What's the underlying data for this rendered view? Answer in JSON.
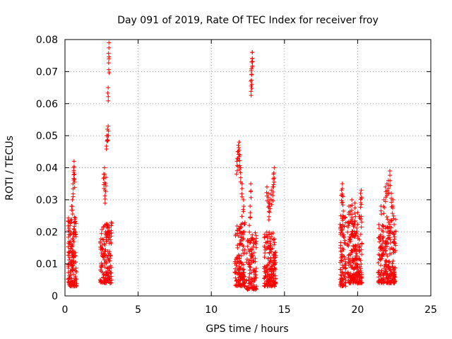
{
  "chart_data": {
    "type": "scatter",
    "title": "Day 091 of 2019, Rate Of TEC Index for receiver froy",
    "xlabel": "GPS time / hours",
    "ylabel": "ROTI / TECUs",
    "xlim": [
      0,
      25
    ],
    "ylim": [
      0,
      0.08
    ],
    "xticks": [
      "0",
      "5",
      "10",
      "15",
      "20",
      "25"
    ],
    "yticks": [
      "0",
      "0.01",
      "0.02",
      "0.03",
      "0.04",
      "0.05",
      "0.06",
      "0.07",
      "0.08"
    ],
    "grid": true,
    "marker": "+",
    "color": "#ff0000",
    "clusters": [
      {
        "x_range": [
          0.2,
          0.8
        ],
        "y_range": [
          0.003,
          0.025
        ],
        "count": 150,
        "peaks": [
          [
            0.35,
            0.022
          ],
          [
            0.5,
            0.03
          ],
          [
            0.55,
            0.035
          ],
          [
            0.6,
            0.04
          ],
          [
            0.62,
            0.042
          ],
          [
            0.65,
            0.038
          ],
          [
            0.45,
            0.028
          ]
        ]
      },
      {
        "x_range": [
          2.4,
          3.2
        ],
        "y_range": [
          0.004,
          0.023
        ],
        "count": 160,
        "peaks": [
          [
            2.7,
            0.04
          ],
          [
            2.75,
            0.033
          ],
          [
            2.8,
            0.037
          ],
          [
            2.85,
            0.05
          ],
          [
            2.9,
            0.052
          ],
          [
            2.95,
            0.053
          ],
          [
            2.95,
            0.065
          ],
          [
            3.0,
            0.074
          ],
          [
            3.0,
            0.079
          ],
          [
            2.65,
            0.038
          ]
        ]
      },
      {
        "x_range": [
          11.6,
          12.3
        ],
        "y_range": [
          0.003,
          0.025
        ],
        "count": 150,
        "peaks": [
          [
            11.75,
            0.042
          ],
          [
            11.8,
            0.045
          ],
          [
            11.85,
            0.047
          ],
          [
            11.9,
            0.048
          ],
          [
            11.95,
            0.044
          ],
          [
            12.0,
            0.04
          ],
          [
            12.1,
            0.035
          ],
          [
            12.2,
            0.03
          ]
        ]
      },
      {
        "x_range": [
          12.4,
          13.1
        ],
        "y_range": [
          0.002,
          0.02
        ],
        "count": 120,
        "peaks": [
          [
            12.7,
            0.067
          ],
          [
            12.75,
            0.069
          ],
          [
            12.75,
            0.073
          ],
          [
            12.8,
            0.076
          ],
          [
            12.8,
            0.076
          ],
          [
            12.7,
            0.035
          ],
          [
            12.65,
            0.028
          ],
          [
            12.6,
            0.022
          ]
        ]
      },
      {
        "x_range": [
          13.6,
          14.4
        ],
        "y_range": [
          0.003,
          0.02
        ],
        "count": 170,
        "peaks": [
          [
            13.8,
            0.034
          ],
          [
            13.9,
            0.032
          ],
          [
            14.0,
            0.03
          ],
          [
            14.1,
            0.033
          ],
          [
            14.2,
            0.034
          ],
          [
            14.25,
            0.038
          ],
          [
            14.3,
            0.04
          ],
          [
            13.95,
            0.028
          ]
        ]
      },
      {
        "x_range": [
          18.8,
          19.2
        ],
        "y_range": [
          0.003,
          0.025
        ],
        "count": 90,
        "peaks": [
          [
            18.9,
            0.033
          ],
          [
            18.95,
            0.035
          ],
          [
            19.0,
            0.031
          ],
          [
            18.85,
            0.025
          ]
        ]
      },
      {
        "x_range": [
          19.3,
          20.3
        ],
        "y_range": [
          0.004,
          0.025
        ],
        "count": 220,
        "peaks": [
          [
            19.5,
            0.028
          ],
          [
            19.6,
            0.03
          ],
          [
            19.8,
            0.029
          ],
          [
            20.0,
            0.026
          ],
          [
            20.2,
            0.032
          ],
          [
            20.25,
            0.033
          ],
          [
            19.4,
            0.028
          ]
        ]
      },
      {
        "x_range": [
          21.4,
          22.6
        ],
        "y_range": [
          0.004,
          0.025
        ],
        "count": 240,
        "peaks": [
          [
            21.6,
            0.028
          ],
          [
            21.8,
            0.03
          ],
          [
            21.9,
            0.034
          ],
          [
            22.0,
            0.035
          ],
          [
            22.1,
            0.036
          ],
          [
            22.2,
            0.039
          ],
          [
            22.3,
            0.032
          ],
          [
            22.4,
            0.03
          ],
          [
            21.7,
            0.022
          ]
        ]
      }
    ]
  }
}
